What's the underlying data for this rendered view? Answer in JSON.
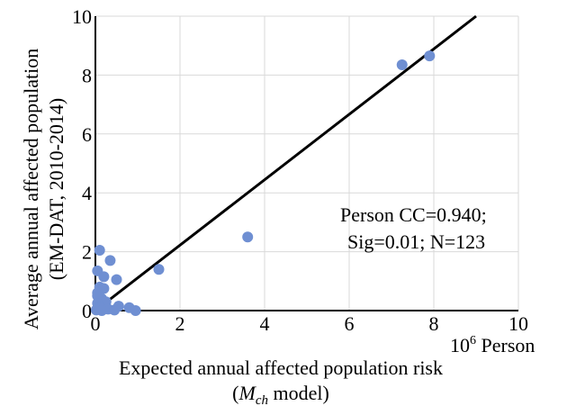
{
  "chart_data": {
    "type": "scatter",
    "title": "",
    "xlabel": "Expected annual affected population risk",
    "xlabel_line2_prefix": "(",
    "xlabel_line2_var": "M",
    "xlabel_line2_sub": "ch",
    "xlabel_line2_suffix": " model)",
    "x_unit_base": "10",
    "x_unit_exp": "6",
    "x_unit_word": " Person",
    "ylabel_line1": "Average annual affected population",
    "ylabel_line2": "(EM-DAT, 2010-2014)",
    "xlim": [
      0,
      10
    ],
    "ylim": [
      0,
      10
    ],
    "x_ticks": [
      0,
      2,
      4,
      6,
      8,
      10
    ],
    "y_ticks": [
      0,
      2,
      4,
      6,
      8,
      10
    ],
    "x_tick_labels": [
      "0",
      "2",
      "4",
      "6",
      "8",
      "10"
    ],
    "y_tick_labels": [
      "0",
      "2",
      "4",
      "6",
      "8",
      "10"
    ],
    "grid": true,
    "point_color": "#6f8fd2",
    "line_color": "#000000",
    "fit_line": {
      "x": [
        0,
        9.0
      ],
      "y": [
        0,
        10.0
      ]
    },
    "annotation_line1": "Person CC=0.940;",
    "annotation_line2": "Sig=0.01; N=123",
    "points": [
      {
        "x": 7.9,
        "y": 8.65
      },
      {
        "x": 7.25,
        "y": 8.35
      },
      {
        "x": 3.6,
        "y": 2.5
      },
      {
        "x": 1.5,
        "y": 1.4
      },
      {
        "x": 0.35,
        "y": 1.7
      },
      {
        "x": 0.1,
        "y": 2.05
      },
      {
        "x": 0.5,
        "y": 1.05
      },
      {
        "x": 0.05,
        "y": 1.35
      },
      {
        "x": 0.2,
        "y": 1.15
      },
      {
        "x": 0.1,
        "y": 0.8
      },
      {
        "x": 0.2,
        "y": 0.75
      },
      {
        "x": 0.05,
        "y": 0.5
      },
      {
        "x": 0.15,
        "y": 0.4
      },
      {
        "x": 0.25,
        "y": 0.3
      },
      {
        "x": 0.05,
        "y": 0.25
      },
      {
        "x": 0.1,
        "y": 0.1
      },
      {
        "x": 0.3,
        "y": 0.05
      },
      {
        "x": 0.55,
        "y": 0.15
      },
      {
        "x": 0.45,
        "y": 0.02
      },
      {
        "x": 0.8,
        "y": 0.1
      },
      {
        "x": 0.95,
        "y": 0.0
      },
      {
        "x": 0.02,
        "y": 0.02
      },
      {
        "x": 0.15,
        "y": 0.0
      },
      {
        "x": 0.05,
        "y": 0.6
      }
    ]
  }
}
